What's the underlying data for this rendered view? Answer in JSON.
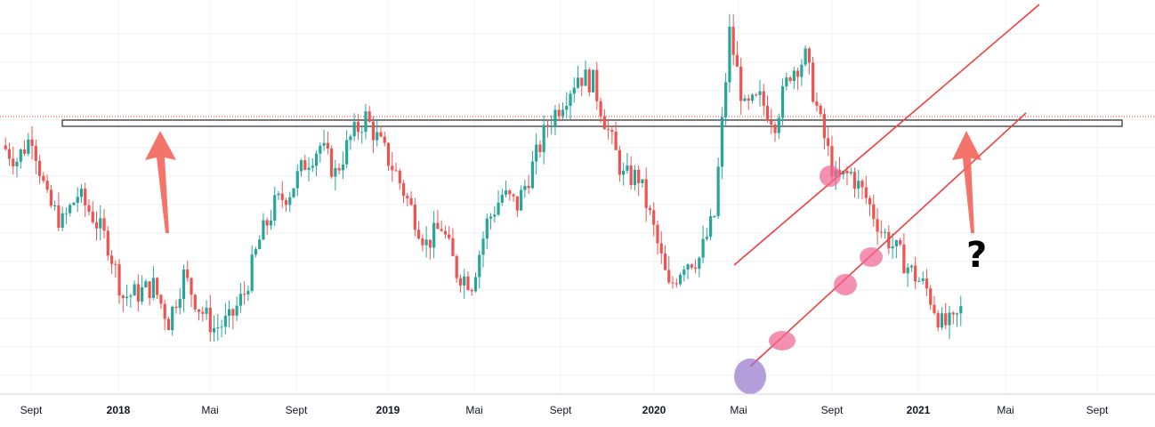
{
  "colors": {
    "up": "#26a69a",
    "down": "#ef5350",
    "grid": "#eef0f3",
    "trend": "#f23c3c",
    "arrow": "#f4655a",
    "highlight_pink": "#f06292",
    "highlight_purple": "#9575cd",
    "price_line": "#e53935"
  },
  "annotations": {
    "question_mark": "?"
  },
  "chart_data": {
    "type": "candlestick",
    "title": "",
    "xlabel": "",
    "ylabel": "",
    "timeframe": "weekly",
    "grid": true,
    "x_axis_ticks": [
      "Sept",
      "2018",
      "Mai",
      "Sept",
      "2019",
      "Mai",
      "Sept",
      "2020",
      "Mai",
      "Sept",
      "2021",
      "Mai",
      "Sept"
    ],
    "bold_ticks": [
      "2018",
      "2019",
      "2020",
      "2021"
    ],
    "series": [
      {
        "name": "",
        "anchors": [
          [
            0,
            0.7
          ],
          [
            4,
            0.66
          ],
          [
            8,
            0.73
          ],
          [
            12,
            0.54
          ],
          [
            16,
            0.48
          ],
          [
            20,
            0.56
          ],
          [
            24,
            0.5
          ],
          [
            28,
            0.42
          ],
          [
            32,
            0.27
          ],
          [
            36,
            0.28
          ],
          [
            40,
            0.3
          ],
          [
            44,
            0.2
          ],
          [
            48,
            0.33
          ],
          [
            52,
            0.24
          ],
          [
            56,
            0.18
          ],
          [
            60,
            0.2
          ],
          [
            64,
            0.28
          ],
          [
            68,
            0.43
          ],
          [
            72,
            0.53
          ],
          [
            76,
            0.57
          ],
          [
            80,
            0.65
          ],
          [
            84,
            0.7
          ],
          [
            88,
            0.62
          ],
          [
            92,
            0.72
          ],
          [
            96,
            0.78
          ],
          [
            100,
            0.7
          ],
          [
            104,
            0.62
          ],
          [
            108,
            0.52
          ],
          [
            112,
            0.42
          ],
          [
            116,
            0.47
          ],
          [
            120,
            0.34
          ],
          [
            124,
            0.31
          ],
          [
            128,
            0.48
          ],
          [
            132,
            0.56
          ],
          [
            136,
            0.53
          ],
          [
            140,
            0.64
          ],
          [
            144,
            0.76
          ],
          [
            148,
            0.83
          ],
          [
            152,
            0.9
          ],
          [
            156,
            0.88
          ],
          [
            160,
            0.74
          ],
          [
            164,
            0.61
          ],
          [
            168,
            0.61
          ],
          [
            172,
            0.46
          ],
          [
            176,
            0.29
          ],
          [
            180,
            0.37
          ],
          [
            184,
            0.38
          ],
          [
            188,
            0.5
          ],
          [
            192,
            1.02
          ],
          [
            196,
            0.8
          ],
          [
            200,
            0.83
          ],
          [
            204,
            0.77
          ],
          [
            208,
            0.91
          ],
          [
            212,
            0.95
          ],
          [
            216,
            0.76
          ],
          [
            220,
            0.6
          ],
          [
            224,
            0.62
          ],
          [
            228,
            0.55
          ],
          [
            232,
            0.46
          ],
          [
            236,
            0.4
          ],
          [
            240,
            0.34
          ],
          [
            244,
            0.29
          ],
          [
            248,
            0.19
          ],
          [
            251,
            0.19
          ],
          [
            253,
            0.23
          ]
        ]
      }
    ],
    "horizontal_zone": "resistance",
    "trend_channel": "rising",
    "arrows": [
      "up",
      "up"
    ],
    "highlight_markers": 6
  }
}
